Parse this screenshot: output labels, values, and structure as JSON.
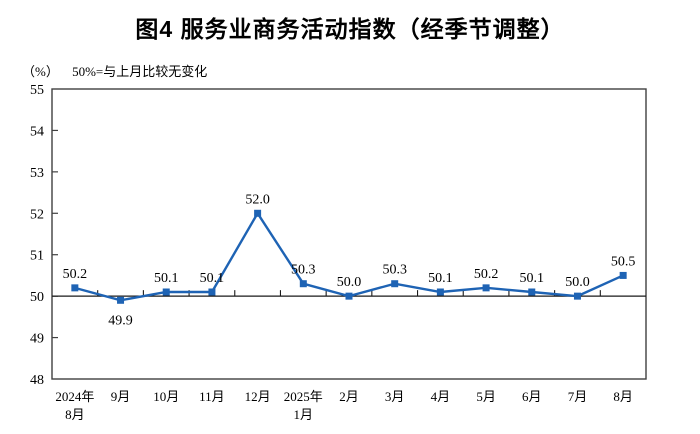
{
  "header": {
    "title": "图4 服务业商务活动指数（经季节调整）",
    "unit_label": "（%）",
    "subtitle": "50%=与上月比较无变化"
  },
  "chart_data": {
    "type": "line",
    "title": "图4 服务业商务活动指数（经季节调整）",
    "ylabel": "%",
    "categories": [
      [
        "2024年",
        "8月"
      ],
      [
        "9月"
      ],
      [
        "10月"
      ],
      [
        "11月"
      ],
      [
        "12月"
      ],
      [
        "2025年",
        "1月"
      ],
      [
        "2月"
      ],
      [
        "3月"
      ],
      [
        "4月"
      ],
      [
        "5月"
      ],
      [
        "6月"
      ],
      [
        "7月"
      ],
      [
        "8月"
      ]
    ],
    "values": [
      50.2,
      49.9,
      50.1,
      50.1,
      52.0,
      50.3,
      50.0,
      50.3,
      50.1,
      50.2,
      50.1,
      50.0,
      50.5
    ],
    "point_labels": [
      "50.2",
      "49.9",
      "50.1",
      "50.1",
      "52.0",
      "50.3",
      "50.0",
      "50.3",
      "50.1",
      "50.2",
      "50.1",
      "50.0",
      "50.5"
    ],
    "label_below": [
      false,
      true,
      false,
      false,
      false,
      false,
      false,
      false,
      false,
      false,
      false,
      false,
      false
    ],
    "ylim": [
      48,
      55
    ],
    "yticks": [
      48,
      49,
      50,
      51,
      52,
      53,
      54,
      55
    ],
    "baseline": 50,
    "grid": false,
    "legend": null,
    "colors": {
      "series": "#1e63b4",
      "axis": "#404040",
      "baseline": "#1a1a1a",
      "text": "#000000"
    }
  }
}
